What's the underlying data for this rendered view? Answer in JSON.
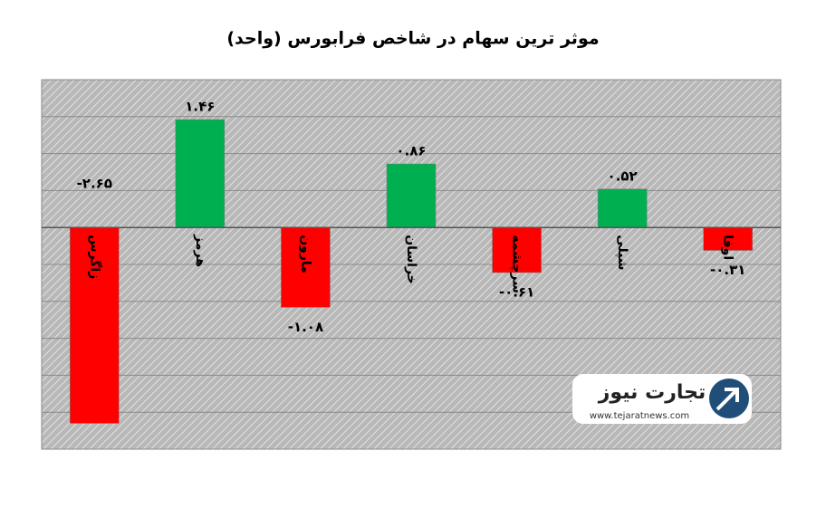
{
  "chart_data": {
    "type": "bar",
    "title": "موثر ترین سهام در شاخص فرابورس (واحد)",
    "categories": [
      "زاگرس",
      "هرمز",
      "مارون",
      "خراسان",
      "سرچشمه",
      "شپلی",
      "اوفا"
    ],
    "values": [
      -2.65,
      1.46,
      -1.08,
      0.86,
      -0.61,
      0.52,
      -0.31
    ],
    "value_labels": [
      "-۲.۶۵",
      "۱.۴۶",
      "-۱.۰۸",
      "۰.۸۶",
      "-۰.۶۱",
      "۰.۵۲",
      "-۰.۳۱"
    ],
    "positive_color": "#00b050",
    "negative_color": "#ff0000",
    "ylim": [
      -3,
      2
    ],
    "yticks": [
      -3,
      -2.5,
      -2,
      -1.5,
      -1,
      -0.5,
      0,
      0.5,
      1,
      1.5,
      2
    ],
    "grid": true
  },
  "logo": {
    "name": "تجارت نیوز",
    "url": "www.tejaratnews.com"
  }
}
